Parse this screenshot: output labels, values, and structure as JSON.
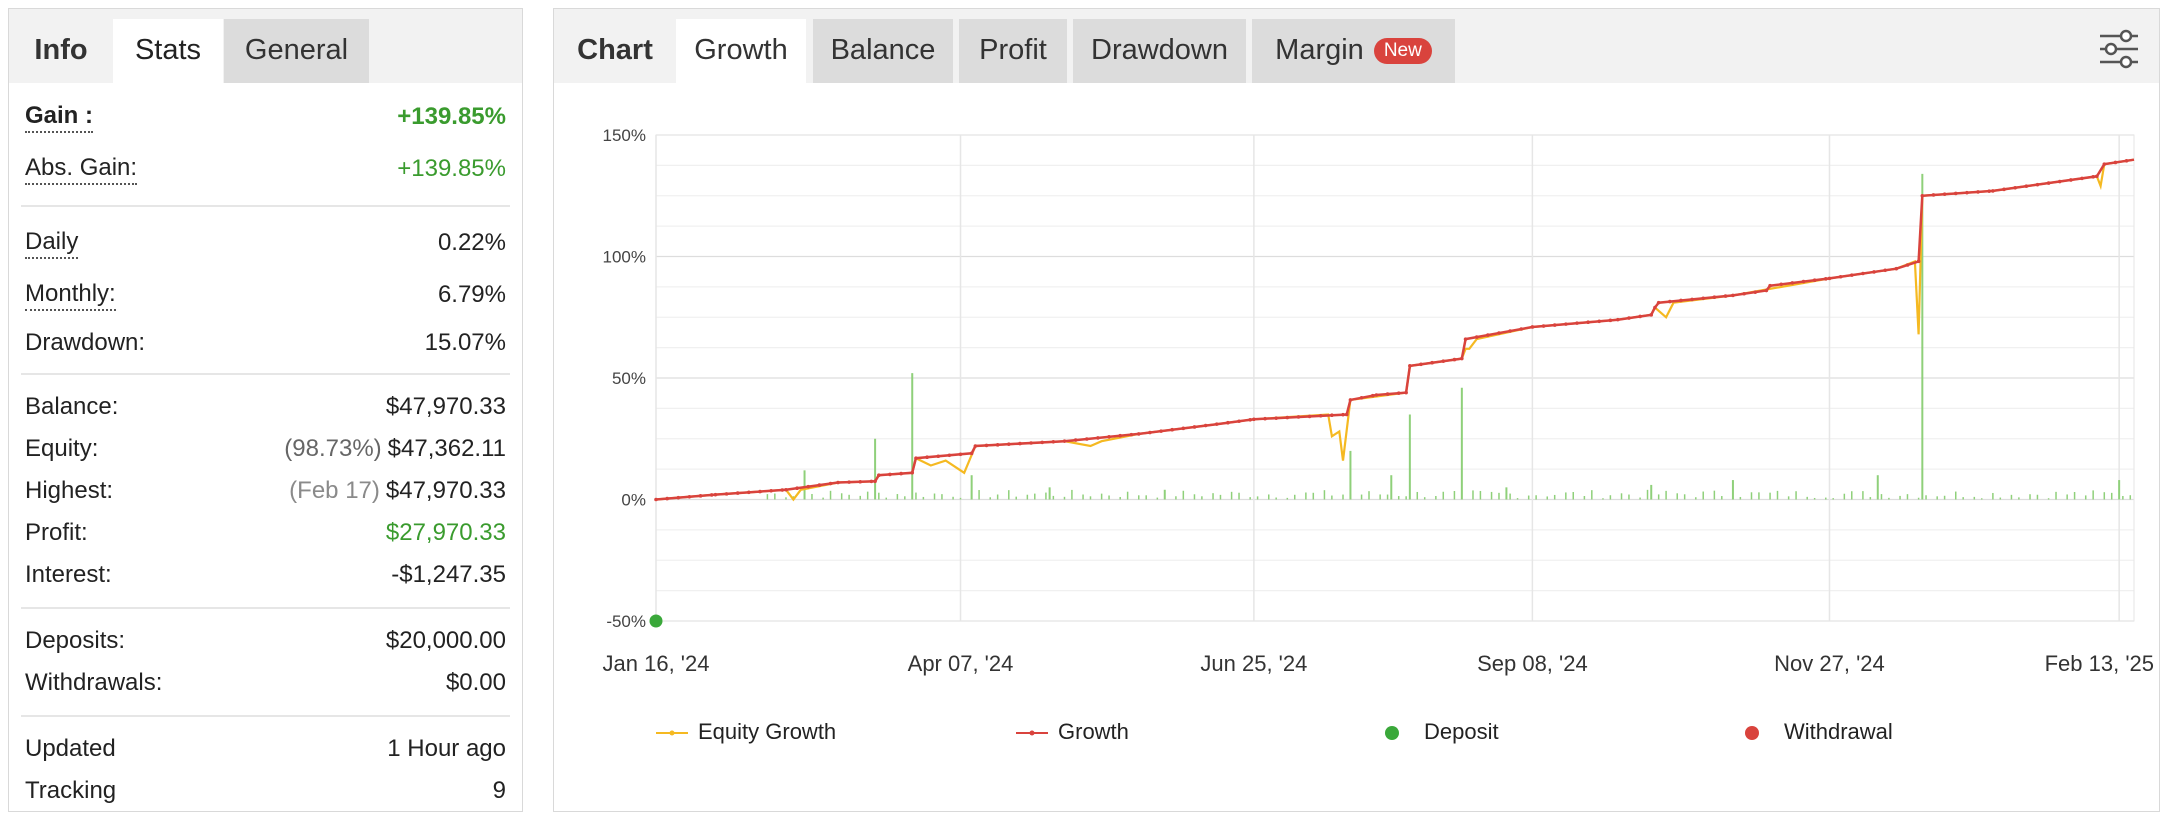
{
  "stats": {
    "tabs": [
      "Info",
      "Stats",
      "General"
    ],
    "active_tab": "Stats",
    "gain": {
      "label": "Gain :",
      "value": "+139.85%"
    },
    "abs_gain": {
      "label": "Abs. Gain:",
      "value": "+139.85%"
    },
    "daily": {
      "label": "Daily",
      "value": "0.22%"
    },
    "monthly": {
      "label": "Monthly:",
      "value": "6.79%"
    },
    "drawdown": {
      "label": "Drawdown:",
      "value": "15.07%"
    },
    "balance": {
      "label": "Balance:",
      "value": "$47,970.33"
    },
    "equity": {
      "label": "Equity:",
      "sub": "(98.73%)",
      "value": "$47,362.11"
    },
    "highest": {
      "label": "Highest:",
      "sub": "(Feb 17)",
      "value": "$47,970.33"
    },
    "profit": {
      "label": "Profit:",
      "value": "$27,970.33"
    },
    "interest": {
      "label": "Interest:",
      "value": "-$1,247.35"
    },
    "deposits": {
      "label": "Deposits:",
      "value": "$20,000.00"
    },
    "withdrawals": {
      "label": "Withdrawals:",
      "value": "$0.00"
    },
    "updated": {
      "label": "Updated",
      "value": "1 Hour ago"
    },
    "tracking": {
      "label": "Tracking",
      "value": "9"
    }
  },
  "chart_panel": {
    "tabs": [
      "Chart",
      "Growth",
      "Balance",
      "Profit",
      "Drawdown",
      "Margin"
    ],
    "active_tab": "Growth",
    "margin_badge": "New",
    "settings_icon": "sliders-icon"
  },
  "colors": {
    "growth": "#d9433d",
    "equity": "#f5b921",
    "bars": "#8fd07a",
    "deposit": "#3aa83a",
    "withdrawal": "#d9433d",
    "gain_positive": "#3a9b2e"
  },
  "chart_data": {
    "type": "line",
    "xlabel": "",
    "ylabel": "",
    "yticks": [
      "150%",
      "100%",
      "50%",
      "0%",
      "-50%"
    ],
    "ylim": [
      -50,
      150
    ],
    "xticks": [
      "Jan 16, '24",
      "Apr 07, '24",
      "Jun 25, '24",
      "Sep 08, '24",
      "Nov 27, '24",
      "Feb 13, '25"
    ],
    "x_domain": [
      "Jan 16, '24",
      "Feb 17, '25"
    ],
    "grid": true,
    "legend_position": "bottom",
    "legend": [
      "Equity Growth",
      "Growth",
      "Deposit",
      "Withdrawal"
    ],
    "series": [
      {
        "name": "Growth",
        "points": [
          [
            "2024-01-16",
            0
          ],
          [
            "2024-02-01",
            2
          ],
          [
            "2024-02-20",
            4
          ],
          [
            "2024-03-05",
            7
          ],
          [
            "2024-03-15",
            7.5
          ],
          [
            "2024-03-16",
            10
          ],
          [
            "2024-03-25",
            11
          ],
          [
            "2024-03-26",
            17
          ],
          [
            "2024-04-10",
            19
          ],
          [
            "2024-04-11",
            22
          ],
          [
            "2024-05-05",
            24
          ],
          [
            "2024-05-25",
            27
          ],
          [
            "2024-06-15",
            31
          ],
          [
            "2024-06-25",
            33
          ],
          [
            "2024-07-20",
            35
          ],
          [
            "2024-07-21",
            41
          ],
          [
            "2024-07-28",
            43
          ],
          [
            "2024-08-05",
            44
          ],
          [
            "2024-08-06",
            55
          ],
          [
            "2024-08-20",
            58
          ],
          [
            "2024-08-21",
            66
          ],
          [
            "2024-09-08",
            71
          ],
          [
            "2024-10-01",
            74
          ],
          [
            "2024-10-10",
            76
          ],
          [
            "2024-10-11",
            79
          ],
          [
            "2024-10-12",
            81
          ],
          [
            "2024-11-01",
            84
          ],
          [
            "2024-11-10",
            86
          ],
          [
            "2024-11-11",
            88
          ],
          [
            "2024-11-27",
            91
          ],
          [
            "2024-12-15",
            95
          ],
          [
            "2024-12-21",
            98
          ],
          [
            "2024-12-22",
            125
          ],
          [
            "2025-01-10",
            127
          ],
          [
            "2025-02-07",
            133
          ],
          [
            "2025-02-09",
            138
          ],
          [
            "2025-02-17",
            139.85
          ]
        ]
      },
      {
        "name": "Equity Growth",
        "points": [
          [
            "2024-01-16",
            0
          ],
          [
            "2024-02-01",
            2
          ],
          [
            "2024-02-20",
            4
          ],
          [
            "2024-02-22",
            0
          ],
          [
            "2024-02-24",
            4
          ],
          [
            "2024-03-05",
            7
          ],
          [
            "2024-03-15",
            7.5
          ],
          [
            "2024-03-16",
            10
          ],
          [
            "2024-03-25",
            11
          ],
          [
            "2024-03-26",
            17
          ],
          [
            "2024-03-30",
            14
          ],
          [
            "2024-04-03",
            16
          ],
          [
            "2024-04-08",
            11
          ],
          [
            "2024-04-11",
            22
          ],
          [
            "2024-05-05",
            24
          ],
          [
            "2024-05-12",
            22
          ],
          [
            "2024-05-15",
            24
          ],
          [
            "2024-05-25",
            27
          ],
          [
            "2024-06-15",
            31
          ],
          [
            "2024-06-25",
            33
          ],
          [
            "2024-07-15",
            35
          ],
          [
            "2024-07-16",
            26
          ],
          [
            "2024-07-18",
            28
          ],
          [
            "2024-07-19",
            16
          ],
          [
            "2024-07-21",
            41
          ],
          [
            "2024-08-05",
            44
          ],
          [
            "2024-08-06",
            55
          ],
          [
            "2024-08-20",
            58
          ],
          [
            "2024-08-21",
            62
          ],
          [
            "2024-08-22",
            62
          ],
          [
            "2024-08-24",
            66
          ],
          [
            "2024-09-08",
            71
          ],
          [
            "2024-10-01",
            74
          ],
          [
            "2024-10-10",
            76
          ],
          [
            "2024-10-11",
            79
          ],
          [
            "2024-10-14",
            75
          ],
          [
            "2024-10-16",
            81
          ],
          [
            "2024-11-01",
            84
          ],
          [
            "2024-11-27",
            91
          ],
          [
            "2024-12-15",
            95
          ],
          [
            "2024-12-20",
            98
          ],
          [
            "2024-12-21",
            68
          ],
          [
            "2024-12-22",
            125
          ],
          [
            "2025-01-10",
            127
          ],
          [
            "2025-02-07",
            133
          ],
          [
            "2025-02-08",
            129
          ],
          [
            "2025-02-09",
            138
          ],
          [
            "2025-02-17",
            139.85
          ]
        ]
      }
    ],
    "bars_description": "small green daily bars along 0%",
    "bars": [
      [
        "2024-02-25",
        12
      ],
      [
        "2024-03-15",
        25
      ],
      [
        "2024-03-25",
        52
      ],
      [
        "2024-04-10",
        10
      ],
      [
        "2024-05-01",
        5
      ],
      [
        "2024-06-01",
        4
      ],
      [
        "2024-07-21",
        20
      ],
      [
        "2024-08-01",
        10
      ],
      [
        "2024-08-06",
        35
      ],
      [
        "2024-08-20",
        46
      ],
      [
        "2024-09-01",
        5
      ],
      [
        "2024-10-10",
        6
      ],
      [
        "2024-11-01",
        8
      ],
      [
        "2024-12-10",
        10
      ],
      [
        "2024-12-22",
        134
      ],
      [
        "2025-02-13",
        8
      ]
    ],
    "deposit_points": [
      [
        "2024-01-16",
        -50
      ]
    ]
  }
}
